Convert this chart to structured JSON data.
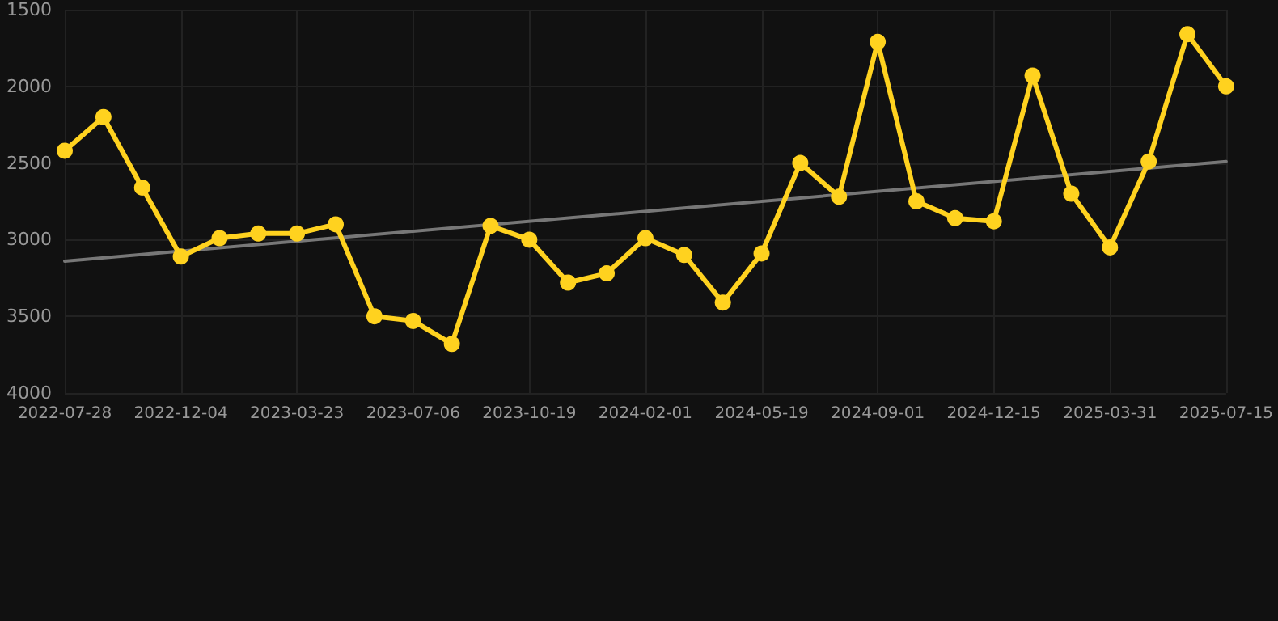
{
  "chart_data": {
    "type": "line",
    "categories": [
      "2022-07-28",
      null,
      null,
      "2022-12-04",
      null,
      null,
      "2023-03-23",
      null,
      null,
      "2023-07-06",
      null,
      null,
      "2023-10-19",
      null,
      null,
      "2024-02-01",
      null,
      null,
      "2024-05-19",
      null,
      null,
      "2024-09-01",
      null,
      null,
      "2024-12-15",
      null,
      null,
      "2025-03-31",
      null,
      null,
      "2025-07-15"
    ],
    "series": [
      {
        "color": "#ffd21f",
        "marker": "circle",
        "values": [
          2420,
          2200,
          2660,
          3110,
          2990,
          2960,
          2960,
          2900,
          3500,
          3530,
          3680,
          2910,
          3000,
          3280,
          3220,
          2990,
          3100,
          3410,
          3090,
          2500,
          2720,
          1710,
          2750,
          2860,
          2880,
          1930,
          2700,
          3050,
          2490,
          1660,
          2000
        ]
      },
      {
        "color": "#777777",
        "marker": "none",
        "values": [
          3140,
          null,
          null,
          null,
          null,
          null,
          null,
          null,
          null,
          null,
          null,
          null,
          null,
          null,
          null,
          null,
          null,
          null,
          null,
          null,
          null,
          null,
          null,
          null,
          null,
          null,
          null,
          null,
          null,
          null,
          2490
        ]
      }
    ],
    "ylim": [
      4000,
      1500
    ],
    "yticks": [
      1500,
      2000,
      2500,
      3000,
      3500,
      4000
    ],
    "grid": true,
    "line_style": "solid"
  }
}
